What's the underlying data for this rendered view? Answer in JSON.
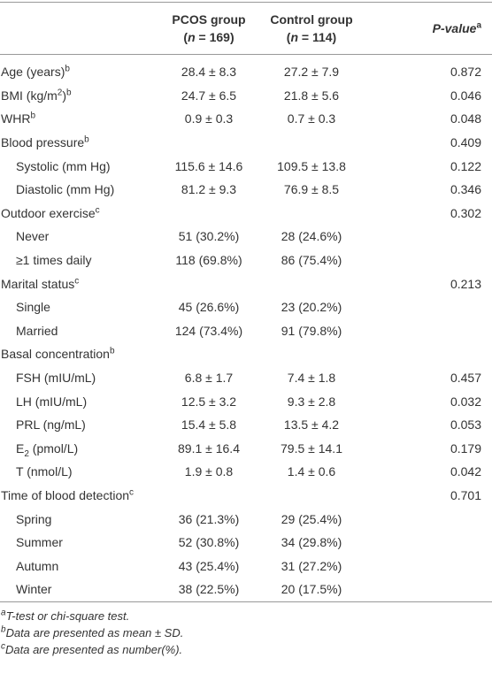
{
  "table": {
    "header": [
      [
        [
          {
            "t": ""
          }
        ]
      ],
      [
        [
          {
            "t": "PCOS group"
          }
        ],
        [
          {
            "t": "("
          },
          {
            "t": "n",
            "s": "i"
          },
          {
            "t": " = 169)"
          }
        ]
      ],
      [
        [
          {
            "t": "Control group"
          }
        ],
        [
          {
            "t": "("
          },
          {
            "t": "n",
            "s": "i"
          },
          {
            "t": " = 114)"
          }
        ]
      ],
      [
        [
          {
            "t": "P-value",
            "s": "i"
          },
          {
            "t": "a",
            "s": "sup"
          }
        ]
      ]
    ],
    "rows": [
      {
        "label": [
          {
            "t": "Age (years)"
          },
          {
            "t": "b",
            "s": "sup"
          }
        ],
        "cells": [
          "28.4 ± 8.3",
          "27.2 ± 7.9",
          "0.872"
        ]
      },
      {
        "label": [
          {
            "t": "BMI (kg/m"
          },
          {
            "t": "2",
            "s": "sup"
          },
          {
            "t": ")"
          },
          {
            "t": "b",
            "s": "sup"
          }
        ],
        "cells": [
          "24.7 ± 6.5",
          "21.8 ± 5.6",
          "0.046"
        ]
      },
      {
        "label": [
          {
            "t": "WHR"
          },
          {
            "t": "b",
            "s": "sup"
          }
        ],
        "cells": [
          "0.9 ± 0.3",
          "0.7 ± 0.3",
          "0.048"
        ]
      },
      {
        "label": [
          {
            "t": "Blood pressure"
          },
          {
            "t": "b",
            "s": "sup"
          }
        ],
        "cells": [
          "",
          "",
          "0.409"
        ]
      },
      {
        "label": [
          {
            "t": "Systolic (mm Hg)"
          }
        ],
        "indent": true,
        "cells": [
          "115.6 ± 14.6",
          "109.5 ± 13.8",
          "0.122"
        ]
      },
      {
        "label": [
          {
            "t": "Diastolic (mm Hg)"
          }
        ],
        "indent": true,
        "cells": [
          "81.2 ± 9.3",
          "76.9 ± 8.5",
          "0.346"
        ]
      },
      {
        "label": [
          {
            "t": "Outdoor exercise"
          },
          {
            "t": "c",
            "s": "sup"
          }
        ],
        "cells": [
          "",
          "",
          "0.302"
        ]
      },
      {
        "label": [
          {
            "t": "Never"
          }
        ],
        "indent": true,
        "cells": [
          "51 (30.2%)",
          "28 (24.6%)",
          ""
        ]
      },
      {
        "label": [
          {
            "t": "≥1 times daily"
          }
        ],
        "indent": true,
        "cells": [
          "118 (69.8%)",
          "86 (75.4%)",
          ""
        ]
      },
      {
        "label": [
          {
            "t": "Marital status"
          },
          {
            "t": "c",
            "s": "sup"
          }
        ],
        "cells": [
          "",
          "",
          "0.213"
        ]
      },
      {
        "label": [
          {
            "t": "Single"
          }
        ],
        "indent": true,
        "cells": [
          "45 (26.6%)",
          "23 (20.2%)",
          ""
        ]
      },
      {
        "label": [
          {
            "t": "Married"
          }
        ],
        "indent": true,
        "cells": [
          "124 (73.4%)",
          "91 (79.8%)",
          ""
        ]
      },
      {
        "label": [
          {
            "t": "Basal concentration"
          },
          {
            "t": "b",
            "s": "sup"
          }
        ],
        "cells": [
          "",
          "",
          ""
        ]
      },
      {
        "label": [
          {
            "t": "FSH (mIU/mL)"
          }
        ],
        "indent": true,
        "cells": [
          "6.8 ± 1.7",
          "7.4 ± 1.8",
          "0.457"
        ]
      },
      {
        "label": [
          {
            "t": "LH (mIU/mL)"
          }
        ],
        "indent": true,
        "cells": [
          "12.5 ± 3.2",
          "9.3 ± 2.8",
          "0.032"
        ]
      },
      {
        "label": [
          {
            "t": "PRL (ng/mL)"
          }
        ],
        "indent": true,
        "cells": [
          "15.4 ± 5.8",
          "13.5 ± 4.2",
          "0.053"
        ]
      },
      {
        "label": [
          {
            "t": "E"
          },
          {
            "t": "2",
            "s": "sub"
          },
          {
            "t": " (pmol/L)"
          }
        ],
        "indent": true,
        "cells": [
          "89.1 ± 16.4",
          "79.5 ± 14.1",
          "0.179"
        ]
      },
      {
        "label": [
          {
            "t": "T (nmol/L)"
          }
        ],
        "indent": true,
        "cells": [
          "1.9 ± 0.8",
          "1.4 ± 0.6",
          "0.042"
        ]
      },
      {
        "label": [
          {
            "t": "Time of blood detection"
          },
          {
            "t": "c",
            "s": "sup"
          }
        ],
        "cells": [
          "",
          "",
          "0.701"
        ]
      },
      {
        "label": [
          {
            "t": "Spring"
          }
        ],
        "indent": true,
        "cells": [
          "36 (21.3%)",
          "29 (25.4%)",
          ""
        ]
      },
      {
        "label": [
          {
            "t": "Summer"
          }
        ],
        "indent": true,
        "cells": [
          "52 (30.8%)",
          "34 (29.8%)",
          ""
        ]
      },
      {
        "label": [
          {
            "t": "Autumn"
          }
        ],
        "indent": true,
        "cells": [
          "43 (25.4%)",
          "31 (27.2%)",
          ""
        ]
      },
      {
        "label": [
          {
            "t": "Winter"
          }
        ],
        "indent": true,
        "cells": [
          "38 (22.5%)",
          "20 (17.5%)",
          ""
        ]
      }
    ],
    "footnotes": [
      [
        {
          "t": "a",
          "s": "sup"
        },
        {
          "t": "T-test or chi-square test."
        }
      ],
      [
        {
          "t": "b",
          "s": "sup"
        },
        {
          "t": "Data are presented as mean ± SD."
        }
      ],
      [
        {
          "t": "c",
          "s": "sup"
        },
        {
          "t": "Data are presented as number(%)."
        }
      ]
    ]
  }
}
